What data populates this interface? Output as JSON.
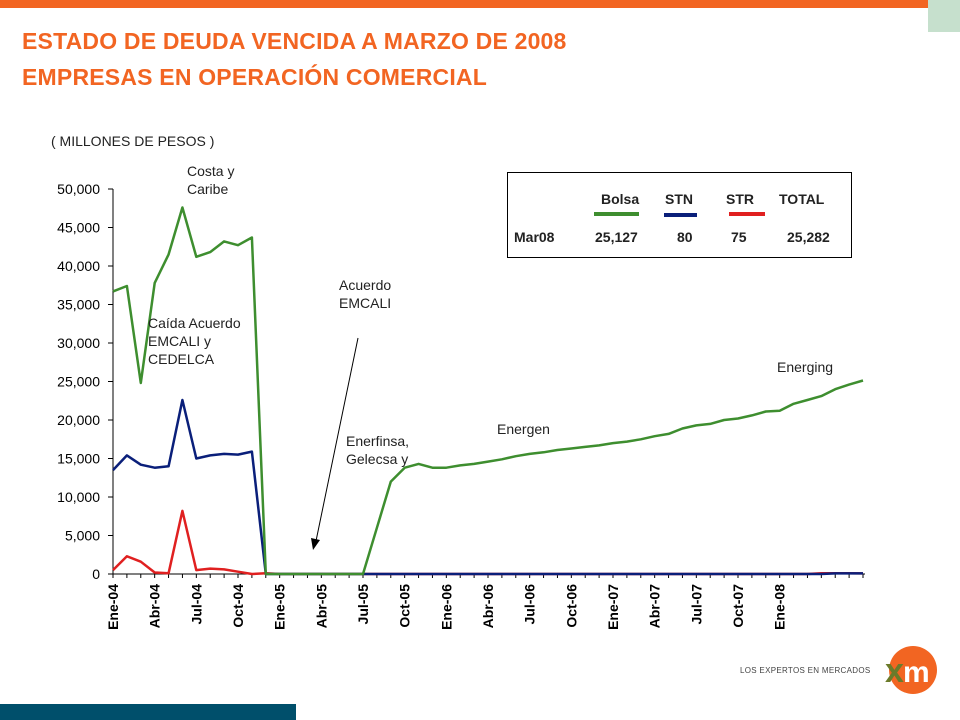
{
  "colors": {
    "accent": "#F26522",
    "teal": "#004F6B",
    "corner": "#C6E0CD",
    "bolsa": "#3E8E2F",
    "stn": "#0A1F7A",
    "str": "#E02020"
  },
  "title_line1": "ESTADO  DE  DEUDA  VENCIDA A MARZO DE 2008",
  "title_line2": "EMPRESAS  EN OPERACIÓN COMERCIAL",
  "units_label": "( MILLONES DE PESOS )",
  "legend": {
    "headers": [
      "Bolsa",
      "STN",
      "STR",
      "TOTAL"
    ],
    "row_label": "Mar08",
    "row_values": [
      "25,127",
      "80",
      "75",
      "25,282"
    ]
  },
  "logo": {
    "tagline": "LOS EXPERTOS EN MERCADOS",
    "icon": "xm-logo-icon"
  },
  "chart_data": {
    "type": "line",
    "ylim": [
      0,
      50000
    ],
    "yticks": [
      0,
      5000,
      10000,
      15000,
      20000,
      25000,
      30000,
      35000,
      40000,
      45000,
      50000
    ],
    "ytick_labels": [
      "0",
      "5,000",
      "10,000",
      "15,000",
      "20,000",
      "25,000",
      "30,000",
      "35,000",
      "40,000",
      "45,000",
      "50,000"
    ],
    "x_tick_labels": [
      "Ene-04",
      "Abr-04",
      "Jul-04",
      "Oct-04",
      "Ene-05",
      "Abr-05",
      "Jul-05",
      "Oct-05",
      "Ene-06",
      "Abr-06",
      "Jul-06",
      "Oct-06",
      "Ene-07",
      "Abr-07",
      "Jul-07",
      "Oct-07",
      "Ene-08"
    ],
    "x_start": "Ene-04",
    "x_end": "Mar-08",
    "series": [
      {
        "name": "Bolsa",
        "color": "#3E8E2F",
        "values": [
          36700,
          37400,
          24800,
          37800,
          41500,
          47600,
          41200,
          41800,
          43200,
          42700,
          43700,
          0,
          0,
          0,
          0,
          0,
          0,
          0,
          0,
          6000,
          12000,
          13800,
          14300,
          13800,
          13800,
          14100,
          14300,
          14600,
          14900,
          15300,
          15600,
          15800,
          16100,
          16300,
          16500,
          16700,
          17000,
          17200,
          17500,
          17900,
          18200,
          18900,
          19300,
          19500,
          20000,
          20200,
          20600,
          21100,
          21200,
          22100,
          22600,
          23100,
          24000,
          24600,
          25127
        ]
      },
      {
        "name": "STN",
        "color": "#0A1F7A",
        "values": [
          13500,
          15400,
          14200,
          13800,
          14000,
          22600,
          15000,
          15400,
          15600,
          15500,
          15900,
          0,
          0,
          0,
          0,
          0,
          0,
          0,
          0,
          0,
          0,
          0,
          0,
          0,
          0,
          0,
          0,
          0,
          0,
          0,
          0,
          0,
          0,
          0,
          0,
          0,
          0,
          0,
          0,
          0,
          0,
          0,
          0,
          0,
          0,
          0,
          0,
          0,
          0,
          0,
          0,
          0,
          80,
          80,
          80
        ]
      },
      {
        "name": "STR",
        "color": "#E02020",
        "values": [
          500,
          2300,
          1600,
          200,
          100,
          8200,
          500,
          700,
          600,
          300,
          0,
          100,
          0,
          0,
          0,
          0,
          0,
          0,
          0,
          0,
          0,
          0,
          0,
          0,
          0,
          0,
          0,
          0,
          0,
          0,
          0,
          0,
          0,
          0,
          0,
          0,
          0,
          0,
          0,
          0,
          0,
          0,
          0,
          0,
          0,
          0,
          0,
          0,
          0,
          0,
          0,
          100,
          100,
          100,
          75
        ]
      }
    ],
    "annotations": [
      {
        "id": "costa",
        "lines": [
          "Costa y",
          "Caribe"
        ]
      },
      {
        "id": "caida",
        "lines": [
          "Caída Acuerdo",
          "EMCALI y",
          "CEDELCA"
        ]
      },
      {
        "id": "acuerdo",
        "lines": [
          "Acuerdo",
          "EMCALI"
        ]
      },
      {
        "id": "enerfinsa",
        "lines": [
          "Enerfinsa,",
          "Gelecsa y"
        ]
      },
      {
        "id": "energen",
        "lines": [
          "Energen"
        ]
      },
      {
        "id": "energing",
        "lines": [
          "Energing"
        ]
      }
    ]
  }
}
